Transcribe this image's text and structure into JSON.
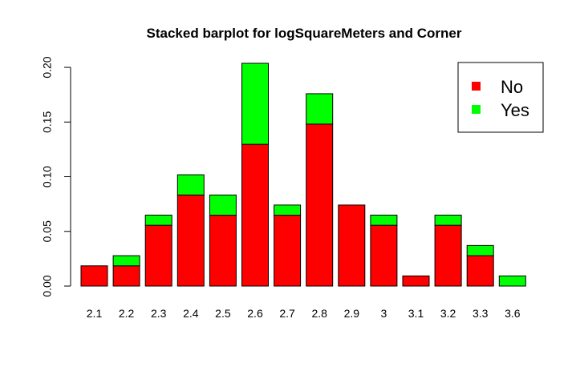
{
  "chart_data": {
    "type": "bar",
    "stacked": true,
    "title": "Stacked barplot for logSquareMeters and Corner",
    "xlabel": "",
    "ylabel": "",
    "categories": [
      "2.1",
      "2.2",
      "2.3",
      "2.4",
      "2.5",
      "2.6",
      "2.7",
      "2.8",
      "2.9",
      "3",
      "3.1",
      "3.2",
      "3.3",
      "3.6"
    ],
    "series": [
      {
        "name": "No",
        "color": "#ff0000",
        "values": [
          0.0185,
          0.0185,
          0.0556,
          0.0833,
          0.0648,
          0.1296,
          0.0648,
          0.1481,
          0.0741,
          0.0556,
          0.0093,
          0.0556,
          0.0278,
          0.0
        ]
      },
      {
        "name": "Yes",
        "color": "#00ff00",
        "values": [
          0.0,
          0.0093,
          0.0093,
          0.0185,
          0.0185,
          0.0741,
          0.0093,
          0.0278,
          0.0,
          0.0093,
          0.0,
          0.0093,
          0.0093,
          0.0093
        ]
      }
    ],
    "ylim": [
      0,
      0.2037
    ],
    "yticks": [
      "0.00",
      "0.05",
      "0.10",
      "0.15",
      "0.20"
    ],
    "legend": {
      "position": "top-right",
      "entries": [
        "No",
        "Yes"
      ]
    },
    "grid": false
  }
}
